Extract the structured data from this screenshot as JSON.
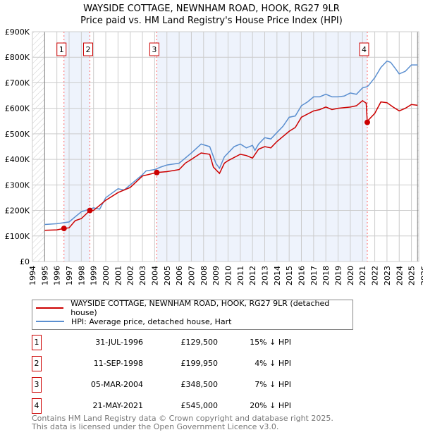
{
  "chart_data": {
    "type": "line",
    "title": "WAYSIDE COTTAGE, NEWNHAM ROAD, HOOK, RG27 9LR",
    "subtitle": "Price paid vs. HM Land Registry's House Price Index (HPI)",
    "xlim": [
      1994,
      2025.6
    ],
    "ylim": [
      0,
      900000
    ],
    "x_ticks": [
      "1994",
      "1995",
      "1996",
      "1997",
      "1998",
      "1999",
      "2000",
      "2001",
      "2002",
      "2003",
      "2004",
      "2005",
      "2006",
      "2007",
      "2008",
      "2009",
      "2010",
      "2011",
      "2012",
      "2013",
      "2014",
      "2015",
      "2016",
      "2017",
      "2018",
      "2019",
      "2020",
      "2021",
      "2022",
      "2023",
      "2024",
      "2025",
      "2026"
    ],
    "y_ticks": [
      {
        "v": 0,
        "label": "£0"
      },
      {
        "v": 100000,
        "label": "£100K"
      },
      {
        "v": 200000,
        "label": "£200K"
      },
      {
        "v": 300000,
        "label": "£300K"
      },
      {
        "v": 400000,
        "label": "£400K"
      },
      {
        "v": 500000,
        "label": "£500K"
      },
      {
        "v": 600000,
        "label": "£600K"
      },
      {
        "v": 700000,
        "label": "£700K"
      },
      {
        "v": 800000,
        "label": "£800K"
      },
      {
        "v": 900000,
        "label": "£900K"
      }
    ],
    "grid": true,
    "series": [
      {
        "name": "WAYSIDE COTTAGE, NEWNHAM ROAD, HOOK, RG27 9LR (detached house)",
        "color": "#cc0000",
        "x": [
          1995,
          1996,
          1996.58,
          1997,
          1997.5,
          1998,
          1998.7,
          1999,
          2000,
          2001,
          2002,
          2003,
          2004.17,
          2005,
          2006,
          2006.5,
          2007,
          2007.8,
          2008.5,
          2008.8,
          2009.3,
          2009.7,
          2010,
          2011,
          2011.5,
          2012,
          2012.5,
          2013,
          2013.5,
          2014,
          2015,
          2015.5,
          2016,
          2017,
          2017.5,
          2018,
          2018.5,
          2019,
          2020,
          2020.5,
          2021,
          2021.3,
          2021.39,
          2021.5,
          2022,
          2022.5,
          2023,
          2023.5,
          2024,
          2024.5,
          2025,
          2025.5
        ],
        "y": [
          122000,
          124000,
          129500,
          132000,
          160000,
          168000,
          199950,
          200000,
          240000,
          270000,
          290000,
          335000,
          348500,
          352000,
          360000,
          385000,
          400000,
          425000,
          420000,
          370000,
          345000,
          385000,
          395000,
          420000,
          415000,
          405000,
          440000,
          450000,
          445000,
          470000,
          510000,
          525000,
          565000,
          590000,
          595000,
          605000,
          595000,
          600000,
          605000,
          610000,
          630000,
          620000,
          545000,
          555000,
          580000,
          625000,
          622000,
          605000,
          590000,
          600000,
          615000,
          612000
        ]
      },
      {
        "name": "HPI: Average price, detached house, Hart",
        "color": "#5b8fd0",
        "x": [
          1995,
          1996,
          1997,
          1997.5,
          1998,
          1999,
          1999.5,
          2000,
          2001,
          2001.5,
          2002,
          2003,
          2003.3,
          2004,
          2004.5,
          2005,
          2006,
          2006.5,
          2007,
          2007.8,
          2008.5,
          2009,
          2009.3,
          2009.7,
          2010,
          2010.5,
          2011,
          2011.5,
          2012,
          2012.2,
          2012.5,
          2013,
          2013.5,
          2014,
          2014.5,
          2015,
          2015.5,
          2016,
          2016.5,
          2017,
          2017.5,
          2018,
          2018.5,
          2019,
          2019.5,
          2020,
          2020.5,
          2021,
          2021.4,
          2021.5,
          2022,
          2022.5,
          2023,
          2023.3,
          2023.7,
          2024,
          2024.5,
          2025,
          2025.5
        ],
        "y": [
          145000,
          148000,
          155000,
          175000,
          195000,
          210000,
          205000,
          250000,
          285000,
          280000,
          300000,
          340000,
          355000,
          360000,
          370000,
          378000,
          385000,
          405000,
          425000,
          460000,
          450000,
          385000,
          365000,
          410000,
          425000,
          450000,
          460000,
          445000,
          455000,
          435000,
          460000,
          485000,
          480000,
          505000,
          530000,
          565000,
          570000,
          610000,
          625000,
          645000,
          645000,
          655000,
          645000,
          645000,
          648000,
          660000,
          655000,
          680000,
          685000,
          690000,
          720000,
          760000,
          785000,
          780000,
          755000,
          735000,
          745000,
          770000,
          770000
        ]
      }
    ],
    "sales": [
      {
        "label": "1",
        "x": 1996.58,
        "y": 129500,
        "date": "31-JUL-1996",
        "price": "£129,500",
        "pct": "15% ↓ HPI"
      },
      {
        "label": "2",
        "x": 1998.7,
        "y": 199950,
        "date": "11-SEP-1998",
        "price": "£199,950",
        "pct": "4% ↓ HPI"
      },
      {
        "label": "3",
        "x": 2004.17,
        "y": 348500,
        "date": "05-MAR-2004",
        "price": "£348,500",
        "pct": "7% ↓ HPI"
      },
      {
        "label": "4",
        "x": 2021.39,
        "y": 545000,
        "date": "21-MAY-2021",
        "price": "£545,000",
        "pct": "20% ↓ HPI"
      }
    ]
  },
  "footer": {
    "line1": "Contains HM Land Registry data © Crown copyright and database right 2025.",
    "line2": "This data is licensed under the Open Government Licence v3.0."
  }
}
